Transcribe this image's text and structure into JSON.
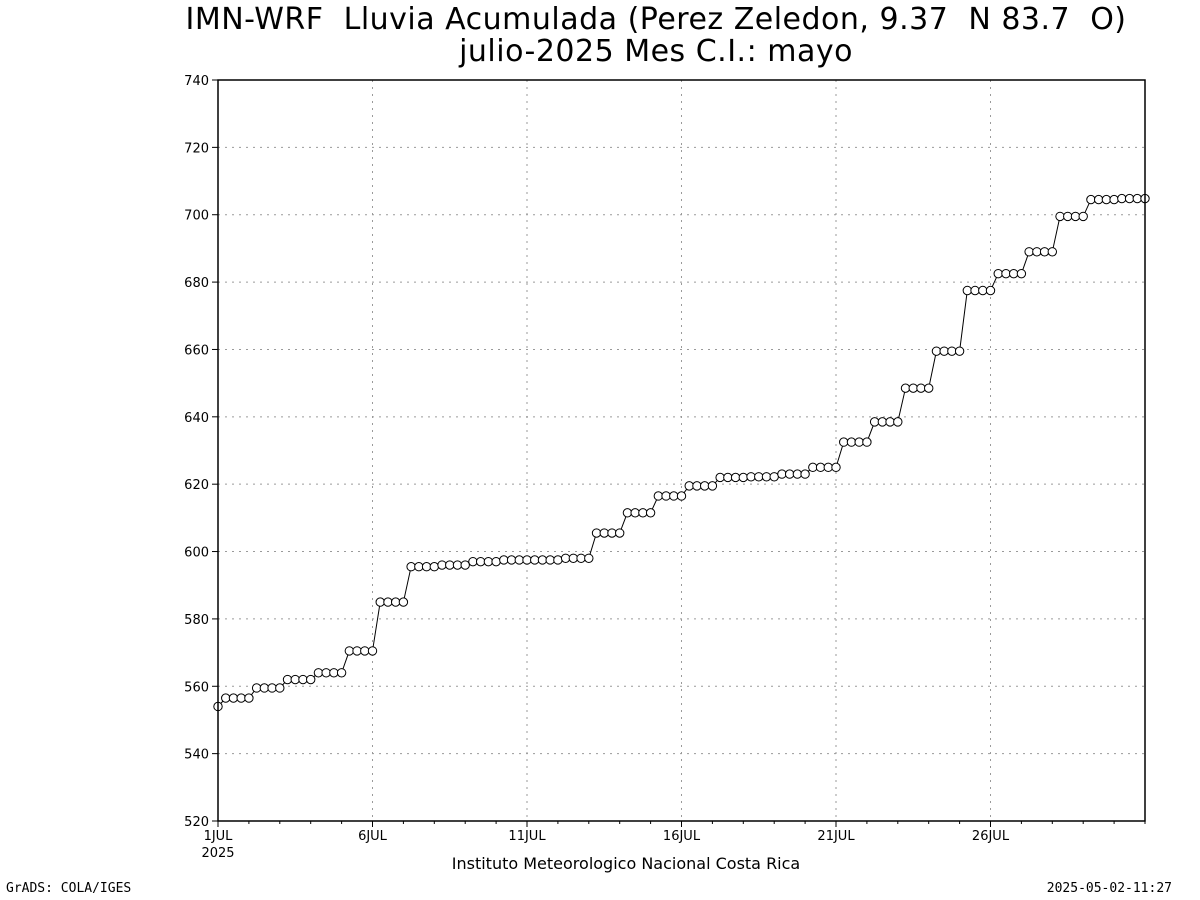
{
  "header": {
    "title_line1": "IMN-WRF  Lluvia Acumulada (Perez Zeledon, 9.37  N 83.7  O)",
    "title_line2": "julio-2025 Mes C.I.: mayo"
  },
  "footer": {
    "left": "GrADS: COLA/IGES",
    "right": "2025-05-02-11:27"
  },
  "chart_data": {
    "type": "line",
    "title": "IMN-WRF  Lluvia Acumulada (Perez Zeledon, 9.37  N 83.7  O)",
    "subtitle": "julio-2025 Mes C.I.: mayo",
    "xlabel": "Instituto Meteorologico Nacional Costa Rica",
    "ylabel": "",
    "x_start_label": "1JUL",
    "x_year_label": "2025",
    "x_unit": "days of July 2025 (6-hourly samples)",
    "xlim": [
      1,
      31
    ],
    "ylim": [
      520,
      740
    ],
    "grid": true,
    "marker": "open-circle",
    "y_ticks": [
      520,
      540,
      560,
      580,
      600,
      620,
      640,
      660,
      680,
      700,
      720,
      740
    ],
    "x_ticks": [
      {
        "value": 1,
        "label": "1JUL"
      },
      {
        "value": 6,
        "label": "6JUL"
      },
      {
        "value": 11,
        "label": "11JUL"
      },
      {
        "value": 16,
        "label": "16JUL"
      },
      {
        "value": 21,
        "label": "21JUL"
      },
      {
        "value": 26,
        "label": "26JUL"
      }
    ],
    "x": [
      1,
      1.25,
      1.5,
      1.75,
      2,
      2.25,
      2.5,
      2.75,
      3,
      3.25,
      3.5,
      3.75,
      4,
      4.25,
      4.5,
      4.75,
      5,
      5.25,
      5.5,
      5.75,
      6,
      6.25,
      6.5,
      6.75,
      7,
      7.25,
      7.5,
      7.75,
      8,
      8.25,
      8.5,
      8.75,
      9,
      9.25,
      9.5,
      9.75,
      10,
      10.25,
      10.5,
      10.75,
      11,
      11.25,
      11.5,
      11.75,
      12,
      12.25,
      12.5,
      12.75,
      13,
      13.25,
      13.5,
      13.75,
      14,
      14.25,
      14.5,
      14.75,
      15,
      15.25,
      15.5,
      15.75,
      16,
      16.25,
      16.5,
      16.75,
      17,
      17.25,
      17.5,
      17.75,
      18,
      18.25,
      18.5,
      18.75,
      19,
      19.25,
      19.5,
      19.75,
      20,
      20.25,
      20.5,
      20.75,
      21,
      21.25,
      21.5,
      21.75,
      22,
      22.25,
      22.5,
      22.75,
      23,
      23.25,
      23.5,
      23.75,
      24,
      24.25,
      24.5,
      24.75,
      25,
      25.25,
      25.5,
      25.75,
      26,
      26.25,
      26.5,
      26.75,
      27,
      27.25,
      27.5,
      27.75,
      28,
      28.25,
      28.5,
      28.75,
      29,
      29.25,
      29.5,
      29.75,
      30,
      30.25,
      30.5,
      30.75,
      31
    ],
    "series": [
      {
        "values": [
          554,
          556.5,
          556.5,
          556.5,
          556.5,
          559.5,
          559.5,
          559.5,
          559.5,
          562,
          562,
          562,
          562,
          564,
          564,
          564,
          564,
          570.5,
          570.5,
          570.5,
          570.5,
          585,
          585,
          585,
          585,
          595.5,
          595.5,
          595.5,
          595.5,
          596,
          596,
          596,
          596,
          597,
          597,
          597,
          597,
          597.5,
          597.5,
          597.5,
          597.5,
          597.5,
          597.5,
          597.5,
          597.5,
          598,
          598,
          598,
          598,
          605.5,
          605.5,
          605.5,
          605.5,
          611.5,
          611.5,
          611.5,
          611.5,
          616.5,
          616.5,
          616.5,
          616.5,
          619.5,
          619.5,
          619.5,
          619.5,
          622,
          622,
          622,
          622,
          622.2,
          622.2,
          622.2,
          622.2,
          623,
          623,
          623,
          623,
          625,
          625,
          625,
          625,
          632.5,
          632.5,
          632.5,
          632.5,
          638.5,
          638.5,
          638.5,
          638.5,
          648.5,
          648.5,
          648.5,
          648.5,
          659.5,
          659.5,
          659.5,
          659.5,
          677.5,
          677.5,
          677.5,
          677.5,
          682.5,
          682.5,
          682.5,
          682.5,
          689,
          689,
          689,
          689,
          699.5,
          699.5,
          699.5,
          699.5,
          704.5,
          704.5,
          704.5,
          704.5,
          704.8,
          704.8,
          704.8,
          704.8
        ]
      }
    ]
  }
}
